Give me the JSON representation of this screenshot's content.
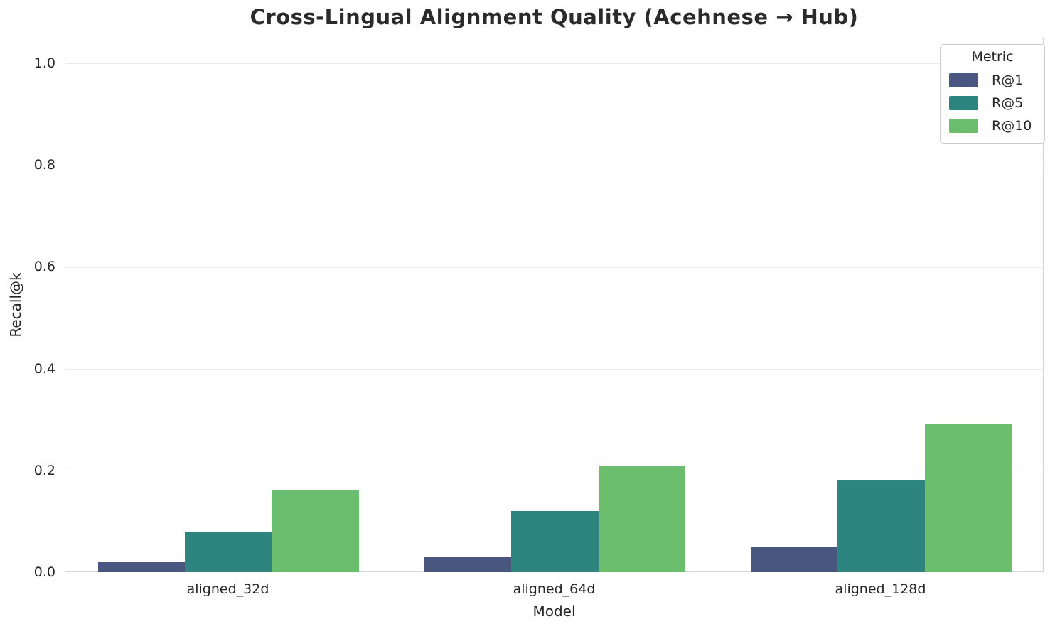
{
  "chart_data": {
    "type": "bar",
    "title": "Cross-Lingual Alignment Quality (Acehnese → Hub)",
    "xlabel": "Model",
    "ylabel": "Recall@k",
    "categories": [
      "aligned_32d",
      "aligned_64d",
      "aligned_128d"
    ],
    "series": [
      {
        "name": "R@1",
        "color": "#49567f",
        "values": [
          0.02,
          0.03,
          0.05
        ]
      },
      {
        "name": "R@5",
        "color": "#2e857f",
        "values": [
          0.08,
          0.12,
          0.18
        ]
      },
      {
        "name": "R@10",
        "color": "#6bbe6e",
        "values": [
          0.16,
          0.21,
          0.29
        ]
      }
    ],
    "ylim": [
      0,
      1.05
    ],
    "yticks": [
      0.0,
      0.2,
      0.4,
      0.6,
      0.8,
      1.0
    ],
    "ytick_labels": [
      "0.0",
      "0.2",
      "0.4",
      "0.6",
      "0.8",
      "1.0"
    ],
    "grid": true,
    "grid_axis": "y",
    "legend_title": "Metric",
    "legend_position": "upper right",
    "bar_group_fraction": 0.8,
    "style": {
      "background": "#ffffff",
      "text_color": "#262626",
      "title_color": "#2b2b2b",
      "grid_color": "#ebebeb",
      "spine_color": "#d5d5d5",
      "legend_border_color": "#cccccc"
    }
  }
}
